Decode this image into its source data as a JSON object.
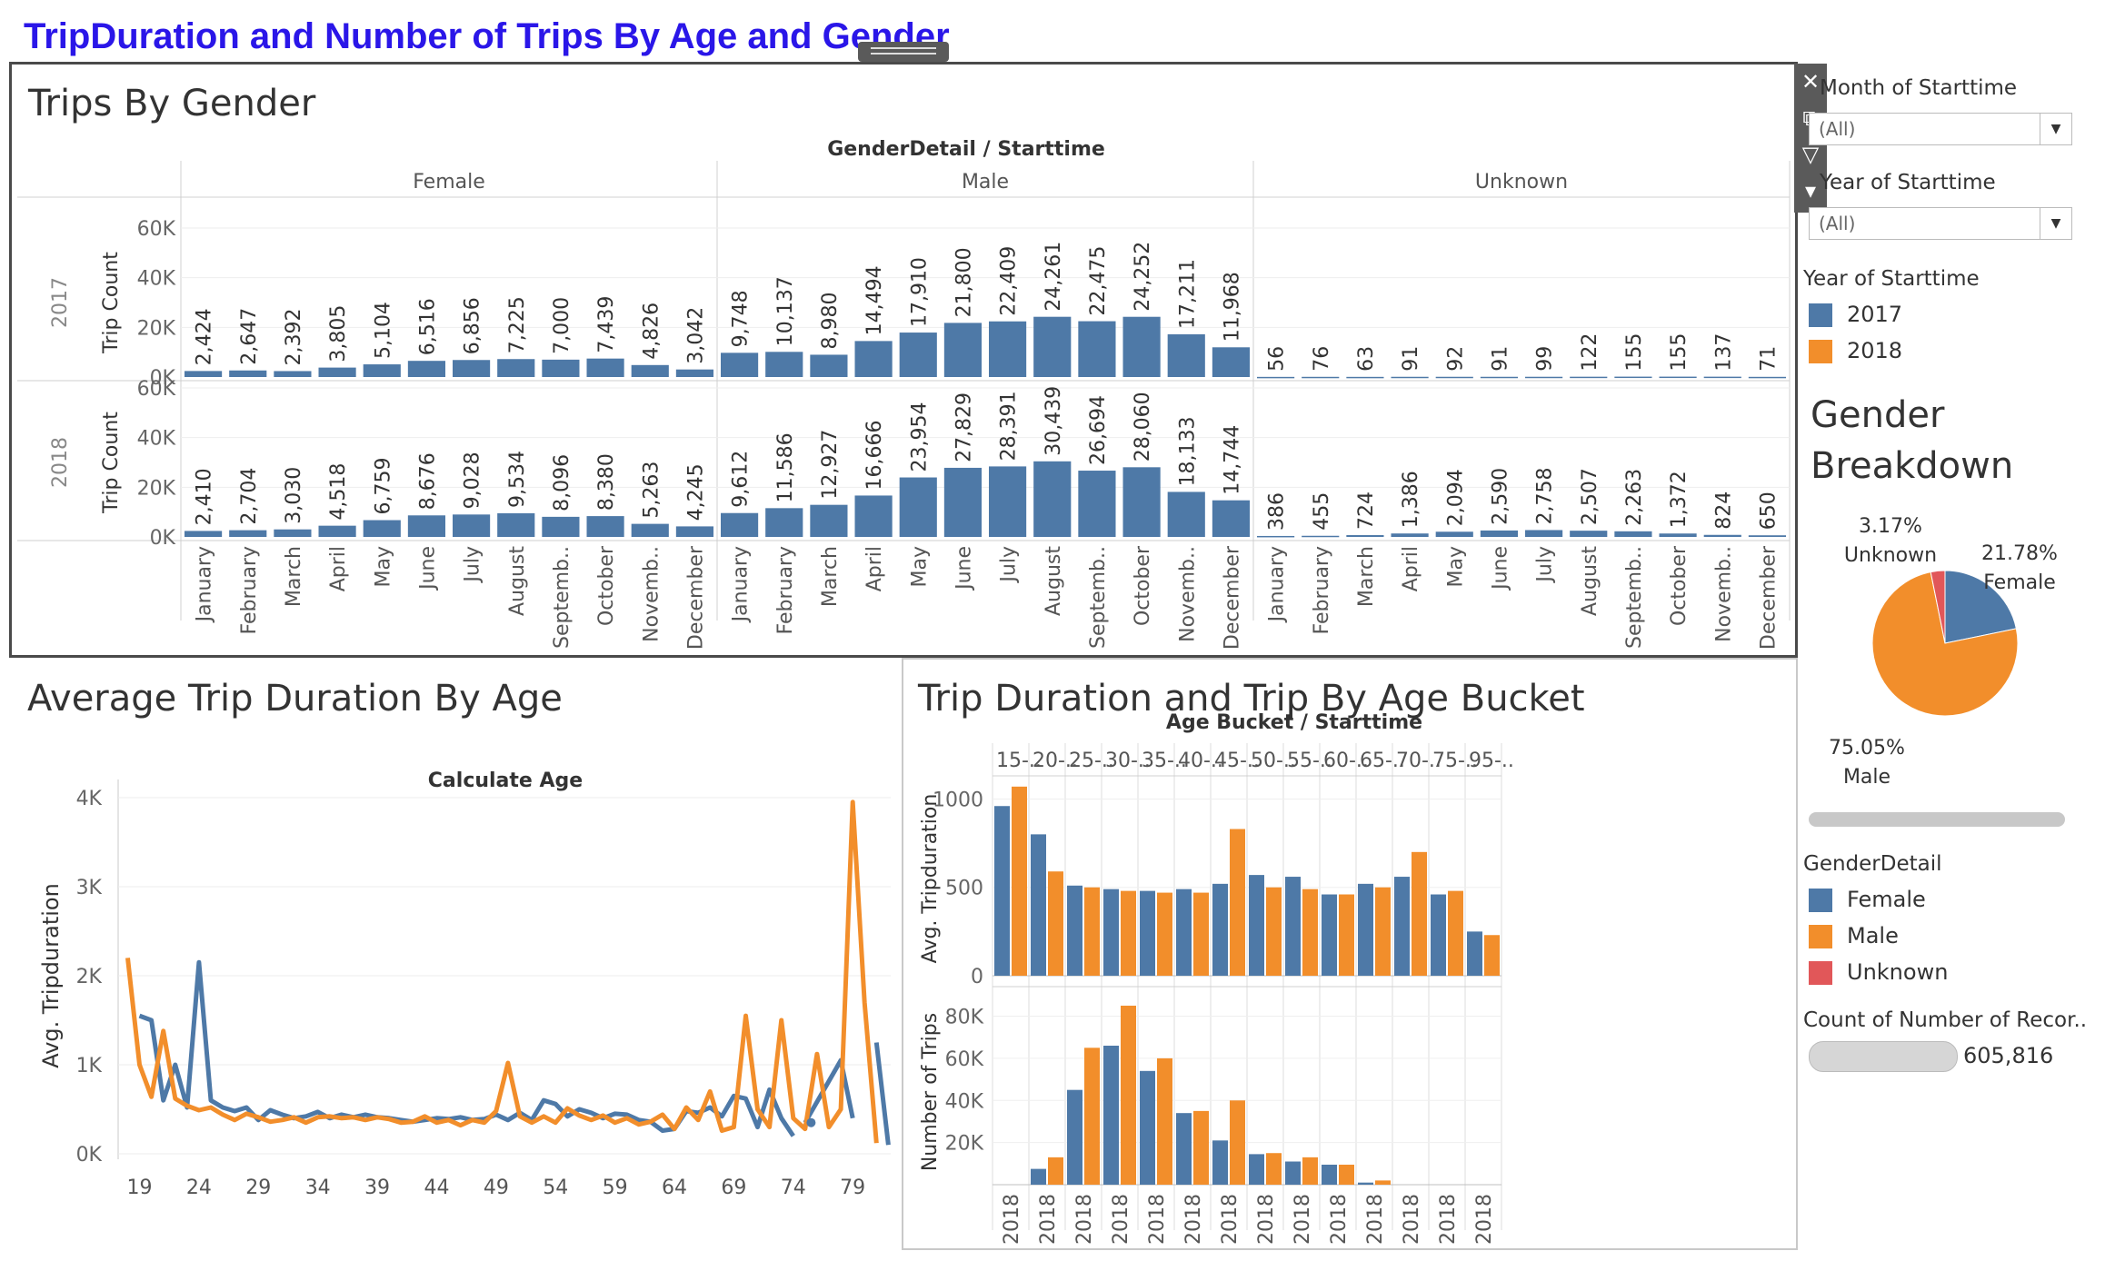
{
  "dashboard": {
    "title": "TripDuration and Number of Trips By Age and Gender"
  },
  "toolbar": {
    "close": "✕",
    "popout": "⧉",
    "filter": "▽",
    "menu": "▾"
  },
  "panels": {
    "gender": {
      "title": "Trips By Gender"
    },
    "age": {
      "title": "Average Trip Duration By Age"
    },
    "bucket": {
      "title": "Trip Duration and Trip By Age Bucket"
    },
    "breakdown": {
      "title_line1": "Gender",
      "title_line2": "Breakdown"
    }
  },
  "filters": {
    "month": {
      "label": "Month of Starttime",
      "value": "(All)"
    },
    "year": {
      "label": "Year of Starttime",
      "value": "(All)"
    }
  },
  "year_legend": {
    "title": "Year of Starttime",
    "items": [
      {
        "label": "2017",
        "color": "#4e79a7"
      },
      {
        "label": "2018",
        "color": "#f28e2b"
      }
    ]
  },
  "gender_legend": {
    "title": "GenderDetail",
    "items": [
      {
        "label": "Female",
        "color": "#4e79a7"
      },
      {
        "label": "Male",
        "color": "#f28e2b"
      },
      {
        "label": "Unknown",
        "color": "#e15759"
      }
    ]
  },
  "count": {
    "label": "Count of Number of Recor..",
    "value": "605,816"
  },
  "chart_data": [
    {
      "type": "bar",
      "title": "Trips By Gender",
      "column_header": "GenderDetail / Starttime",
      "panes": [
        "Female",
        "Male",
        "Unknown"
      ],
      "rows": [
        "2017",
        "2018"
      ],
      "ylabel": "Trip Count",
      "yticks": [
        "60K",
        "40K",
        "20K",
        "0K"
      ],
      "ylim": [
        0,
        60000
      ],
      "categories": [
        "January",
        "February",
        "March",
        "April",
        "May",
        "June",
        "July",
        "August",
        "Septemb..",
        "October",
        "Novemb..",
        "December"
      ],
      "values": {
        "2017": {
          "Female": [
            2424,
            2647,
            2392,
            3805,
            5104,
            6516,
            6856,
            7225,
            7000,
            7439,
            4826,
            3042
          ],
          "Male": [
            9748,
            10137,
            8980,
            14494,
            17910,
            21800,
            22409,
            24261,
            22475,
            24252,
            17211,
            11968
          ],
          "Unknown": [
            56,
            76,
            63,
            91,
            92,
            91,
            99,
            122,
            155,
            155,
            137,
            71
          ]
        },
        "2018": {
          "Female": [
            2410,
            2704,
            3030,
            4518,
            6759,
            8676,
            9028,
            9534,
            8096,
            8380,
            5263,
            4245
          ],
          "Male": [
            9612,
            11586,
            12927,
            16666,
            23954,
            27829,
            28391,
            30439,
            26694,
            28060,
            18133,
            14744
          ],
          "Unknown": [
            386,
            455,
            724,
            1386,
            2094,
            2590,
            2758,
            2507,
            2263,
            1372,
            824,
            650
          ]
        }
      },
      "color": "#4e79a7"
    },
    {
      "type": "line",
      "title": "Average Trip Duration By Age",
      "xlabel": "Calculate Age",
      "ylabel": "Avg. Tripduration",
      "xticks": [
        19,
        24,
        29,
        34,
        39,
        44,
        49,
        54,
        59,
        64,
        69,
        74,
        79
      ],
      "yticks": [
        "4K",
        "3K",
        "2K",
        "1K",
        "0K"
      ],
      "ylim": [
        0,
        4000
      ],
      "series": [
        {
          "color": "#4e79a7",
          "points": [
            [
              19,
              1550
            ],
            [
              20,
              1500
            ],
            [
              21,
              600
            ],
            [
              22,
              1000
            ],
            [
              23,
              520
            ],
            [
              24,
              2150
            ],
            [
              25,
              600
            ],
            [
              26,
              520
            ],
            [
              27,
              480
            ],
            [
              28,
              520
            ],
            [
              29,
              380
            ],
            [
              30,
              490
            ],
            [
              31,
              440
            ],
            [
              32,
              400
            ],
            [
              33,
              420
            ],
            [
              34,
              470
            ],
            [
              35,
              400
            ],
            [
              36,
              440
            ],
            [
              37,
              410
            ],
            [
              38,
              440
            ],
            [
              39,
              410
            ],
            [
              40,
              400
            ],
            [
              41,
              380
            ],
            [
              42,
              360
            ],
            [
              43,
              380
            ],
            [
              44,
              400
            ],
            [
              45,
              390
            ],
            [
              46,
              410
            ],
            [
              47,
              380
            ],
            [
              48,
              390
            ],
            [
              49,
              440
            ],
            [
              50,
              380
            ],
            [
              51,
              460
            ],
            [
              52,
              380
            ],
            [
              53,
              600
            ],
            [
              54,
              560
            ],
            [
              55,
              420
            ],
            [
              56,
              500
            ],
            [
              57,
              460
            ],
            [
              58,
              400
            ],
            [
              59,
              450
            ],
            [
              60,
              440
            ],
            [
              61,
              380
            ],
            [
              62,
              360
            ],
            [
              63,
              260
            ],
            [
              64,
              280
            ],
            [
              65,
              480
            ],
            [
              66,
              460
            ],
            [
              67,
              520
            ],
            [
              68,
              420
            ],
            [
              69,
              650
            ],
            [
              70,
              620
            ],
            [
              71,
              300
            ],
            [
              72,
              720
            ],
            [
              73,
              400
            ],
            [
              74,
              200
            ],
            [
              null,
              null
            ],
            [
              75,
              350
            ],
            [
              78,
              1050
            ],
            [
              79,
              400
            ],
            [
              null,
              null
            ],
            [
              81,
              1250
            ],
            [
              82,
              100
            ]
          ]
        },
        {
          "color": "#f28e2b",
          "points": [
            [
              18,
              2200
            ],
            [
              19,
              1000
            ],
            [
              20,
              640
            ],
            [
              21,
              1380
            ],
            [
              22,
              620
            ],
            [
              23,
              540
            ],
            [
              24,
              490
            ],
            [
              25,
              520
            ],
            [
              26,
              440
            ],
            [
              27,
              380
            ],
            [
              28,
              450
            ],
            [
              29,
              410
            ],
            [
              30,
              360
            ],
            [
              31,
              380
            ],
            [
              32,
              410
            ],
            [
              33,
              350
            ],
            [
              34,
              410
            ],
            [
              35,
              420
            ],
            [
              36,
              400
            ],
            [
              37,
              410
            ],
            [
              38,
              380
            ],
            [
              39,
              410
            ],
            [
              40,
              390
            ],
            [
              41,
              350
            ],
            [
              42,
              360
            ],
            [
              43,
              420
            ],
            [
              44,
              350
            ],
            [
              45,
              380
            ],
            [
              46,
              320
            ],
            [
              47,
              380
            ],
            [
              48,
              350
            ],
            [
              49,
              480
            ],
            [
              50,
              1020
            ],
            [
              51,
              420
            ],
            [
              52,
              350
            ],
            [
              53,
              420
            ],
            [
              54,
              350
            ],
            [
              55,
              510
            ],
            [
              56,
              430
            ],
            [
              57,
              380
            ],
            [
              58,
              430
            ],
            [
              59,
              350
            ],
            [
              60,
              400
            ],
            [
              61,
              330
            ],
            [
              62,
              360
            ],
            [
              63,
              440
            ],
            [
              64,
              280
            ],
            [
              65,
              520
            ],
            [
              66,
              380
            ],
            [
              67,
              700
            ],
            [
              68,
              260
            ],
            [
              69,
              300
            ],
            [
              70,
              1550
            ],
            [
              71,
              500
            ],
            [
              72,
              300
            ],
            [
              73,
              1500
            ],
            [
              74,
              400
            ],
            [
              75,
              280
            ],
            [
              76,
              1120
            ],
            [
              77,
              300
            ],
            [
              78,
              500
            ],
            [
              79,
              3950
            ],
            [
              80,
              1700
            ],
            [
              81,
              120
            ]
          ]
        }
      ]
    },
    {
      "type": "bar",
      "title": "Trip Duration and Trip By Age Bucket",
      "column_header": "Age Bucket / Starttime",
      "categories": [
        "15-..",
        "20-..",
        "25-..",
        "30-..",
        "35-..",
        "40-..",
        "45-..",
        "50-..",
        "55-..",
        "60-..",
        "65-..",
        "70-..",
        "75-..",
        "95-.."
      ],
      "xtick_label": "2018",
      "series": [
        {
          "name": "Avg. Tripduration",
          "yticks": [
            "1000",
            "500",
            "0"
          ],
          "ylim": [
            0,
            1100
          ],
          "blue": [
            960,
            800,
            510,
            490,
            480,
            490,
            520,
            570,
            560,
            460,
            520,
            560,
            460,
            250
          ],
          "orange": [
            1070,
            590,
            500,
            480,
            470,
            470,
            830,
            500,
            490,
            460,
            500,
            700,
            480,
            230
          ]
        },
        {
          "name": "Number of Trips",
          "yticks": [
            "80K",
            "60K",
            "40K",
            "20K"
          ],
          "ylim": [
            0,
            88000
          ],
          "blue": [
            0,
            7500,
            45000,
            66000,
            54000,
            34000,
            21000,
            14500,
            11000,
            9500,
            1000,
            0,
            0,
            0
          ],
          "orange": [
            0,
            13000,
            65000,
            85000,
            60000,
            35000,
            40000,
            15000,
            13000,
            9500,
            2000,
            0,
            0,
            0
          ]
        }
      ],
      "colors": {
        "blue": "#4e79a7",
        "orange": "#f28e2b"
      }
    },
    {
      "type": "pie",
      "title": "Gender Breakdown",
      "slices": [
        {
          "label": "Female",
          "percent": "21.78%",
          "value": 21.78,
          "color": "#4e79a7"
        },
        {
          "label": "Male",
          "percent": "75.05%",
          "value": 75.05,
          "color": "#f28e2b"
        },
        {
          "label": "Unknown",
          "percent": "3.17%",
          "value": 3.17,
          "color": "#e15759"
        }
      ]
    }
  ]
}
